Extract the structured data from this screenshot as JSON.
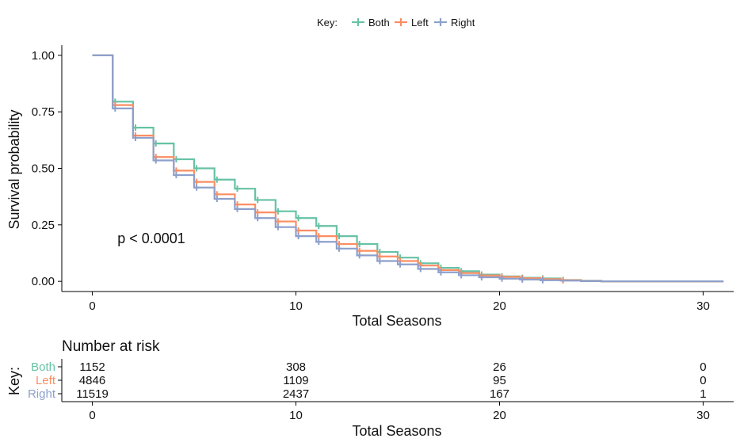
{
  "chart_data": [
    {
      "type": "line",
      "subtype": "kaplan-meier step",
      "title": "",
      "xlabel": "Total Seasons",
      "ylabel": "Survival probability",
      "xlim": [
        -1.5,
        31.5
      ],
      "ylim": [
        -0.045,
        1.045
      ],
      "xticks": [
        0,
        10,
        20,
        30
      ],
      "yticks": [
        0,
        0.25,
        0.5,
        0.75,
        1.0
      ],
      "ytick_labels": [
        "0.00",
        "0.25",
        "0.50",
        "0.75",
        "1.00"
      ],
      "grid": false,
      "legend": {
        "title": "Key:",
        "placement": "top-center",
        "entries": [
          "Both",
          "Left",
          "Right"
        ]
      },
      "annotation": {
        "text": "p < 0.0001",
        "x": 2.4,
        "y": 0.19
      },
      "series": [
        {
          "name": "Both",
          "color": "#66c2a5",
          "x": [
            0,
            1,
            2,
            3,
            4,
            5,
            6,
            7,
            8,
            9,
            10,
            11,
            12,
            13,
            14,
            15,
            16,
            17,
            18,
            19,
            20,
            21,
            22,
            23,
            24,
            25,
            31
          ],
          "y": [
            1.0,
            0.795,
            0.68,
            0.61,
            0.54,
            0.5,
            0.45,
            0.41,
            0.36,
            0.31,
            0.28,
            0.245,
            0.2,
            0.165,
            0.13,
            0.105,
            0.08,
            0.06,
            0.045,
            0.03,
            0.022,
            0.016,
            0.013,
            0.006,
            0.003,
            0.0,
            0.0
          ]
        },
        {
          "name": "Left",
          "color": "#fc8d62",
          "x": [
            0,
            1,
            2,
            3,
            4,
            5,
            6,
            7,
            8,
            9,
            10,
            11,
            12,
            13,
            14,
            15,
            16,
            17,
            18,
            19,
            20,
            21,
            22,
            23,
            24,
            25,
            31
          ],
          "y": [
            1.0,
            0.78,
            0.645,
            0.55,
            0.49,
            0.44,
            0.385,
            0.34,
            0.305,
            0.265,
            0.225,
            0.2,
            0.165,
            0.135,
            0.11,
            0.09,
            0.07,
            0.05,
            0.037,
            0.026,
            0.02,
            0.014,
            0.01,
            0.005,
            0.002,
            0.0,
            0.0
          ]
        },
        {
          "name": "Right",
          "color": "#8da0cb",
          "x": [
            0,
            1,
            2,
            3,
            4,
            5,
            6,
            7,
            8,
            9,
            10,
            11,
            12,
            13,
            14,
            15,
            16,
            17,
            18,
            19,
            20,
            21,
            22,
            23,
            24,
            25,
            31
          ],
          "y": [
            1.0,
            0.765,
            0.635,
            0.535,
            0.47,
            0.415,
            0.365,
            0.32,
            0.28,
            0.24,
            0.2,
            0.175,
            0.145,
            0.115,
            0.09,
            0.075,
            0.055,
            0.04,
            0.027,
            0.018,
            0.012,
            0.008,
            0.005,
            0.003,
            0.001,
            0.0,
            0.0
          ]
        }
      ]
    },
    {
      "type": "table",
      "title": "Number at risk",
      "xlabel": "Total Seasons",
      "ylabel": "Key:",
      "xlim": [
        -1.5,
        31.5
      ],
      "xticks": [
        0,
        10,
        20,
        30
      ],
      "columns_x": [
        0,
        10,
        20,
        30
      ],
      "rows": [
        {
          "name": "Both",
          "color": "#66c2a5",
          "values": [
            "1152",
            "308",
            "26",
            "0"
          ]
        },
        {
          "name": "Left",
          "color": "#fc8d62",
          "values": [
            "4846",
            "1109",
            "95",
            "0"
          ]
        },
        {
          "name": "Right",
          "color": "#8da0cb",
          "values": [
            "11519",
            "2437",
            "167",
            "1"
          ]
        }
      ]
    }
  ]
}
